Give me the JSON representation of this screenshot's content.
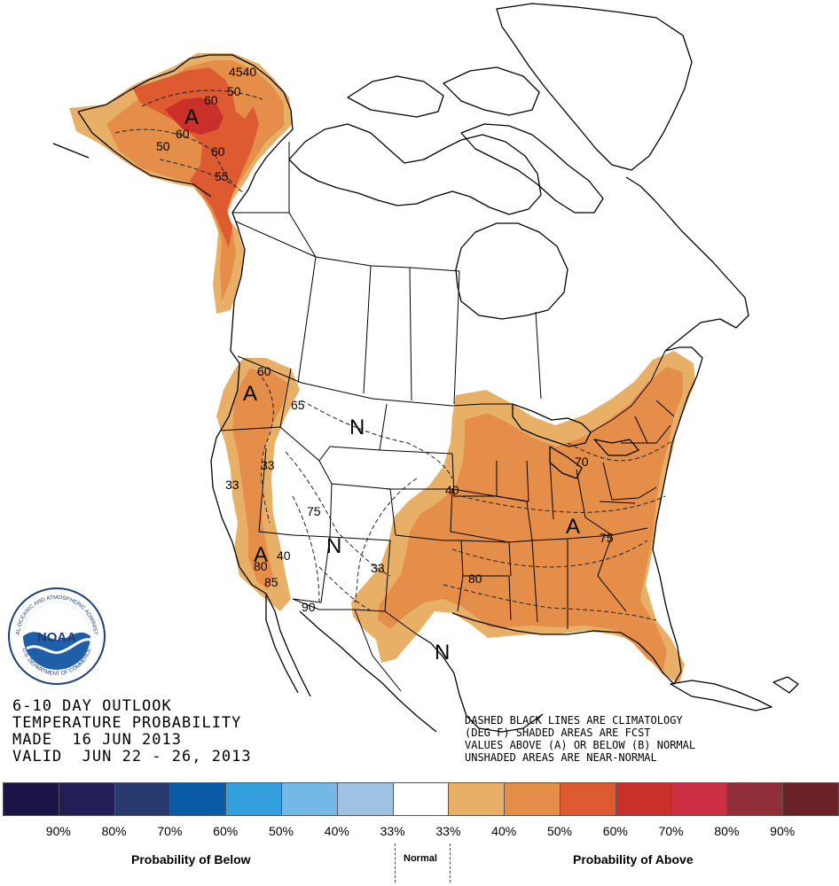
{
  "title_lines": [
    "6-10 DAY OUTLOOK",
    "TEMPERATURE PROBABILITY",
    "MADE  16 JUN 2013",
    "VALID  JUN 22 - 26, 2013"
  ],
  "note_lines": [
    "DASHED BLACK LINES ARE CLIMATOLOGY",
    "(DEG F) SHADED AREAS ARE FCST",
    "VALUES ABOVE (A) OR BELOW (B) NORMAL",
    "UNSHADED AREAS ARE NEAR-NORMAL"
  ],
  "logo": {
    "center_text": "NOAA",
    "ring_top": "NATIONAL OCEANIC AND ATMOSPHERIC ADMINISTRATION",
    "ring_bottom": "U.S. DEPARTMENT OF COMMERCE",
    "icon": "noaa-logo-icon"
  },
  "map_labels": {
    "alaska_A": "A",
    "west_A": "A",
    "california_A": "A",
    "east_A": "A",
    "montana_N": "N",
    "southwest_N": "N",
    "texas_N": "N"
  },
  "contour_labels": {
    "ak_4540": "4540",
    "ak_60a": "60",
    "ak_50a": "50",
    "ak_60b": "60",
    "ak_50b": "50",
    "ak_60c": "60",
    "ak_55": "55",
    "pnw_60": "60",
    "mt_65": "65",
    "nv_33a": "33",
    "nv_33b": "33",
    "ut_75": "75",
    "ca_40": "40",
    "ca_85": "85",
    "ca_80": "80",
    "az_90": "90",
    "nm_33": "33",
    "ks_40": "40",
    "ok_80": "80",
    "se_75": "75",
    "ne_70": "70"
  },
  "legend": {
    "swatches": [
      {
        "color": "#1b1547",
        "label": "90%"
      },
      {
        "color": "#241e58",
        "label": "80%"
      },
      {
        "color": "#283a6d",
        "label": "70%"
      },
      {
        "color": "#0a5ba5",
        "label": "60%"
      },
      {
        "color": "#35a0de",
        "label": "50%"
      },
      {
        "color": "#73b8e6",
        "label": "40%"
      },
      {
        "color": "#9fc2e2",
        "label": "33%"
      },
      {
        "color": "#ffffff",
        "label": "33%"
      },
      {
        "color": "#e8b066",
        "label": "40%"
      },
      {
        "color": "#e58e4a",
        "label": "50%"
      },
      {
        "color": "#de5a30",
        "label": "60%"
      },
      {
        "color": "#c9302a",
        "label": "70%"
      },
      {
        "color": "#cc2f44",
        "label": "80%"
      },
      {
        "color": "#912f38",
        "label": "90%"
      },
      {
        "color": "#6b2226",
        "label": ""
      }
    ],
    "caption_below": "Probability of Below",
    "caption_normal": "Normal",
    "caption_above": "Probability of Above"
  },
  "colors": {
    "prob_40": "#e8b066",
    "prob_50": "#e58e4a",
    "prob_60": "#de5a30",
    "prob_70": "#c9302a"
  }
}
